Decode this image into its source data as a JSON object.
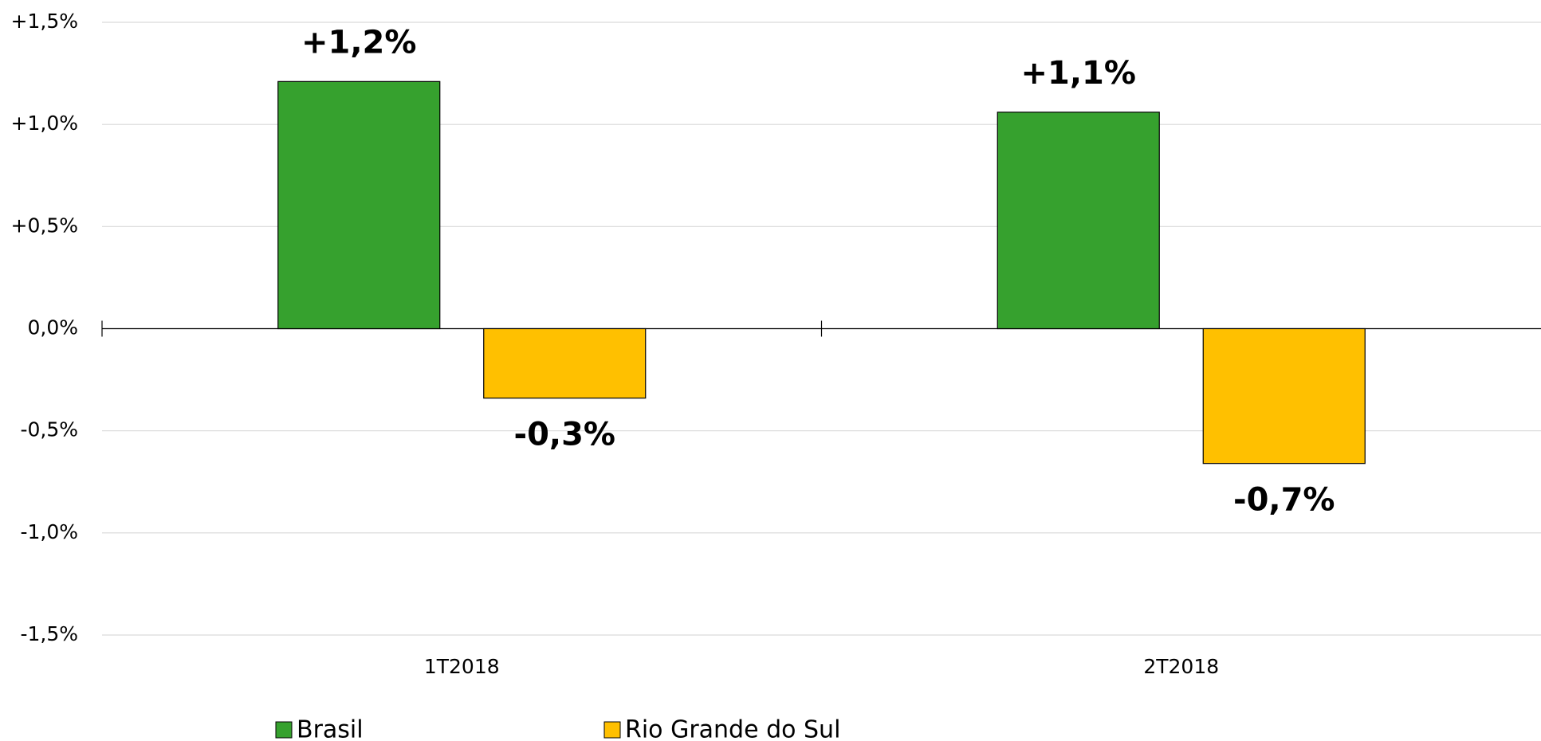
{
  "chart_data": {
    "type": "bar",
    "categories": [
      "1T2018",
      "2T2018"
    ],
    "series": [
      {
        "name": "Brasil",
        "color": "#36a12e",
        "values": [
          1.21,
          1.06
        ],
        "value_labels": [
          "+1,2%",
          "+1,1%"
        ]
      },
      {
        "name": "Rio Grande do Sul",
        "color": "#ffc000",
        "values": [
          -0.34,
          -0.66
        ],
        "value_labels": [
          "-0,3%",
          "-0,7%"
        ]
      }
    ],
    "ylim": [
      -1.5,
      1.5
    ],
    "yticks": [
      {
        "value": 1.5,
        "label": "+1,5%"
      },
      {
        "value": 1.0,
        "label": "+1,0%"
      },
      {
        "value": 0.5,
        "label": "+0,5%"
      },
      {
        "value": 0,
        "label": "0,0%"
      },
      {
        "value": -0.5,
        "label": "-0,5%"
      },
      {
        "value": -1.0,
        "label": "-1,0%"
      },
      {
        "value": -1.5,
        "label": "-1,5%"
      }
    ],
    "grid": true,
    "legend": "bottom"
  }
}
